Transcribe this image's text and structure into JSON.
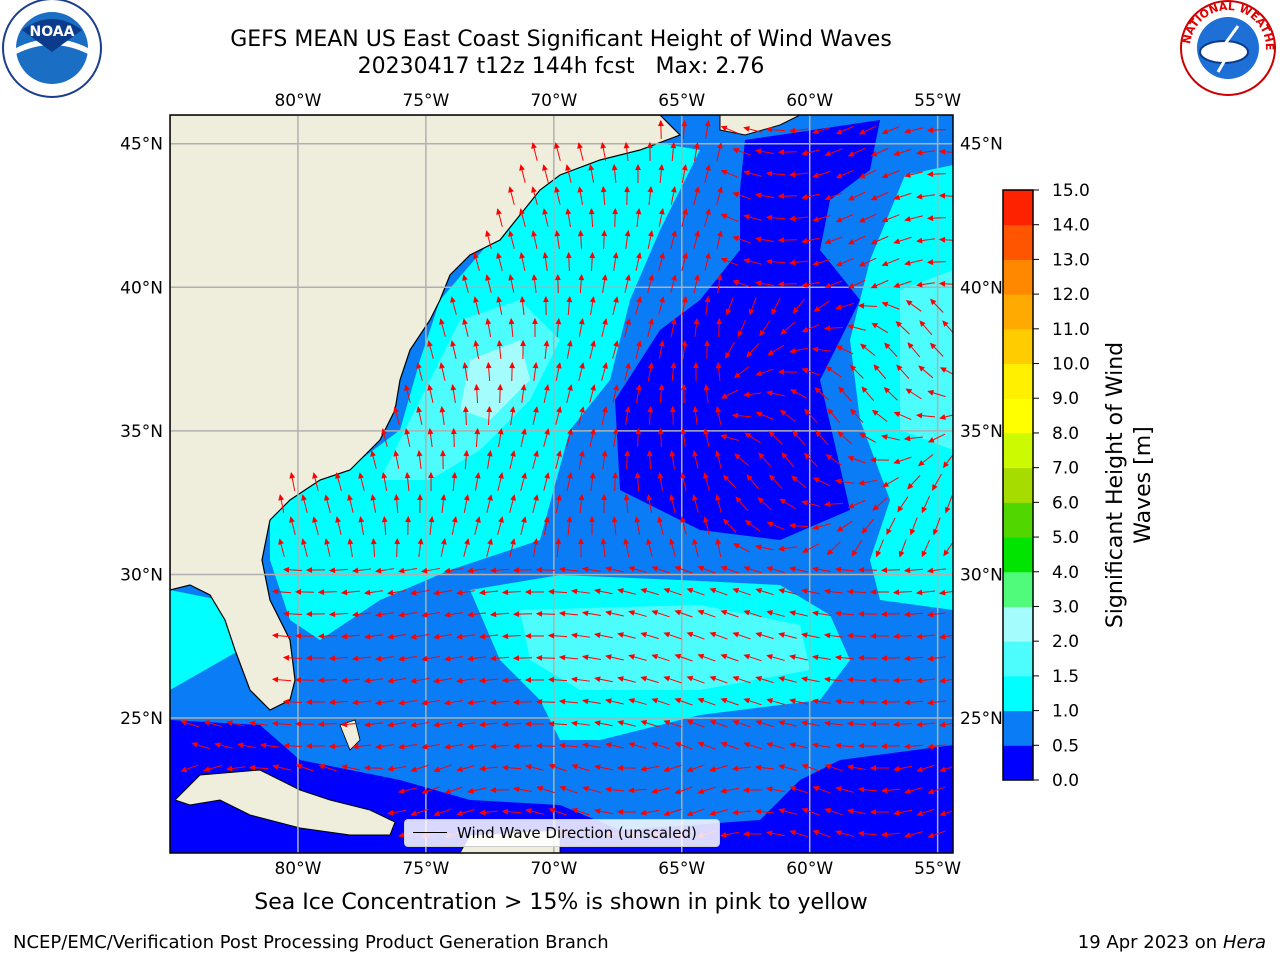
{
  "header": {
    "title_line1": "GEFS MEAN US East Coast Significant Height of Wind Waves",
    "title_line2": "20230417 t12z 144h fcst   Max: 2.76"
  },
  "logos": {
    "left": {
      "text": "NOAA",
      "ring_text": "NATIONAL OCEANIC AND ATMOSPHERIC ADMINISTRATION · U.S. DEPARTMENT OF COMMERCE",
      "icon": "noaa-logo"
    },
    "right": {
      "ring_text": "NATIONAL WEATHER SERVICE",
      "icon": "nws-logo"
    }
  },
  "map": {
    "lon_labels": [
      "80°W",
      "75°W",
      "70°W",
      "65°W",
      "60°W",
      "55°W"
    ],
    "lat_labels": [
      "45°N",
      "40°N",
      "35°N",
      "30°N",
      "25°N"
    ],
    "lon_values": [
      -80,
      -75,
      -70,
      -65,
      -60,
      -55
    ],
    "lat_values": [
      45,
      40,
      35,
      30,
      25
    ],
    "lon_range": [
      -85,
      -54.4
    ],
    "lat_range": [
      20.3,
      46.0
    ],
    "land_color": "#efeedc",
    "grid_color": "#b0b0b0",
    "arrow_color": "#ff0000",
    "legend_label": "Wind Wave Direction (unscaled)"
  },
  "colorbar": {
    "label_line1": "Significant Height of Wind",
    "label_line2": "Waves [m]",
    "ticks": [
      "0.0",
      "0.5",
      "1.0",
      "1.5",
      "2.0",
      "3.0",
      "4.0",
      "5.0",
      "6.0",
      "7.0",
      "8.0",
      "9.0",
      "10.0",
      "11.0",
      "12.0",
      "13.0",
      "14.0",
      "15.0"
    ],
    "colors": [
      "#0000ff",
      "#0a7cf5",
      "#00ffff",
      "#4dfcfc",
      "#a4fcfc",
      "#50fa7a",
      "#00e400",
      "#52d600",
      "#a6dc00",
      "#ccfa00",
      "#ffff00",
      "#fff000",
      "#ffcc00",
      "#ffaa00",
      "#ff8800",
      "#ff5500",
      "#ff2200"
    ]
  },
  "subtitle": "Sea Ice Concentration > 15% is shown in pink to yellow",
  "footer": {
    "left": "NCEP/EMC/Verification Post Processing Product Generation Branch",
    "right_date": "19 Apr 2023 on ",
    "right_host": "Hera"
  }
}
